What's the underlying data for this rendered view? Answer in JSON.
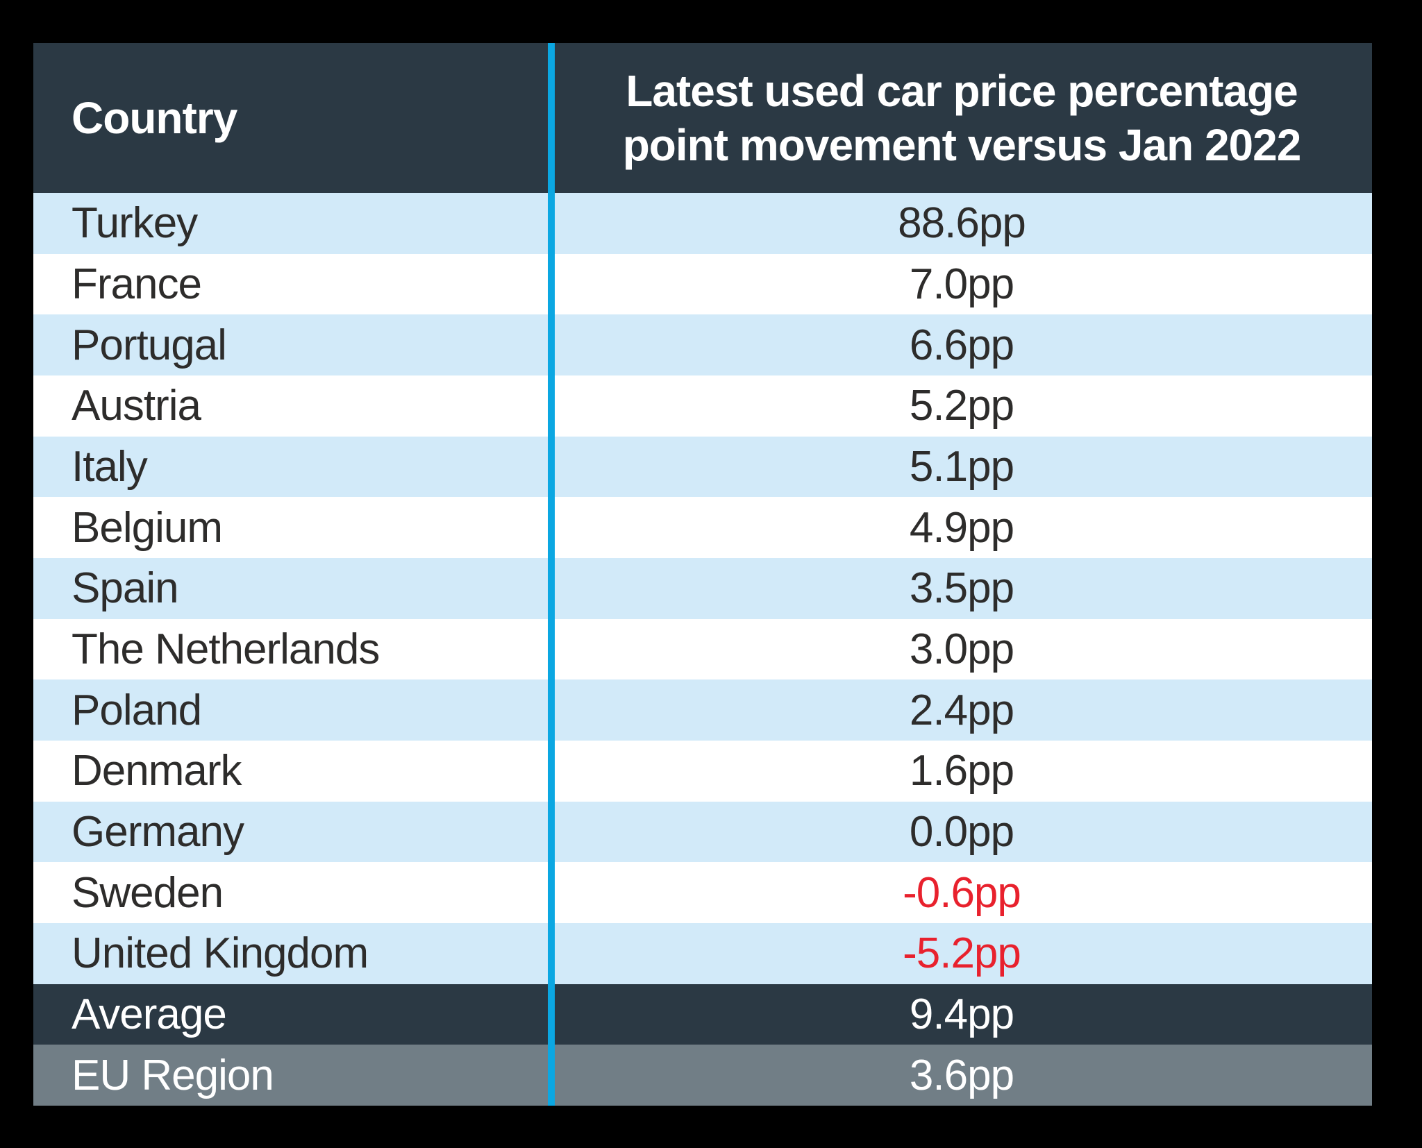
{
  "colors": {
    "page_background": "#000000",
    "header_bg": "#2b3944",
    "stripe_blue": "#d2eaf9",
    "stripe_white": "#ffffff",
    "average_row_bg": "#2b3944",
    "eu_region_row_bg": "#717e86",
    "divider_blue": "#0ba7e2",
    "negative_value_red": "#e8212d",
    "row_text_dark": "#2d2c2b",
    "header_text_light": "#ffffff"
  },
  "header": {
    "country_label": "Country",
    "value_label": "Latest used car price percentage\npoint movement versus Jan 2022"
  },
  "rows": [
    {
      "country": "Turkey",
      "value": "88.6pp",
      "tone": "normal"
    },
    {
      "country": "France",
      "value": "7.0pp",
      "tone": "normal"
    },
    {
      "country": "Portugal",
      "value": "6.6pp",
      "tone": "normal"
    },
    {
      "country": "Austria",
      "value": "5.2pp",
      "tone": "normal"
    },
    {
      "country": "Italy",
      "value": "5.1pp",
      "tone": "normal"
    },
    {
      "country": "Belgium",
      "value": "4.9pp",
      "tone": "normal"
    },
    {
      "country": "Spain",
      "value": "3.5pp",
      "tone": "normal"
    },
    {
      "country": "The Netherlands",
      "value": "3.0pp",
      "tone": "normal"
    },
    {
      "country": "Poland",
      "value": "2.4pp",
      "tone": "normal"
    },
    {
      "country": "Denmark",
      "value": "1.6pp",
      "tone": "normal"
    },
    {
      "country": "Germany",
      "value": "0.0pp",
      "tone": "normal"
    },
    {
      "country": "Sweden",
      "value": "-0.6pp",
      "tone": "negative"
    },
    {
      "country": "United Kingdom",
      "value": "-5.2pp",
      "tone": "negative"
    }
  ],
  "summary": [
    {
      "country": "Average",
      "value": "9.4pp"
    },
    {
      "country": "EU Region",
      "value": "3.6pp"
    }
  ],
  "chart_data": {
    "type": "table",
    "title": "",
    "columns": [
      "Country",
      "Latest used car price percentage point movement versus Jan 2022"
    ],
    "unit": "pp",
    "rows": [
      [
        "Turkey",
        88.6
      ],
      [
        "France",
        7.0
      ],
      [
        "Portugal",
        6.6
      ],
      [
        "Austria",
        5.2
      ],
      [
        "Italy",
        5.1
      ],
      [
        "Belgium",
        4.9
      ],
      [
        "Spain",
        3.5
      ],
      [
        "The Netherlands",
        3.0
      ],
      [
        "Poland",
        2.4
      ],
      [
        "Denmark",
        1.6
      ],
      [
        "Germany",
        0.0
      ],
      [
        "Sweden",
        -0.6
      ],
      [
        "United Kingdom",
        -5.2
      ],
      [
        "Average",
        9.4
      ],
      [
        "EU Region",
        3.6
      ]
    ],
    "negative_highlight": [
      "Sweden",
      "United Kingdom"
    ],
    "layout": "two columns separated by vertical cyan rule; alternating light-blue/white rows; dark Average row; gray EU Region row"
  }
}
